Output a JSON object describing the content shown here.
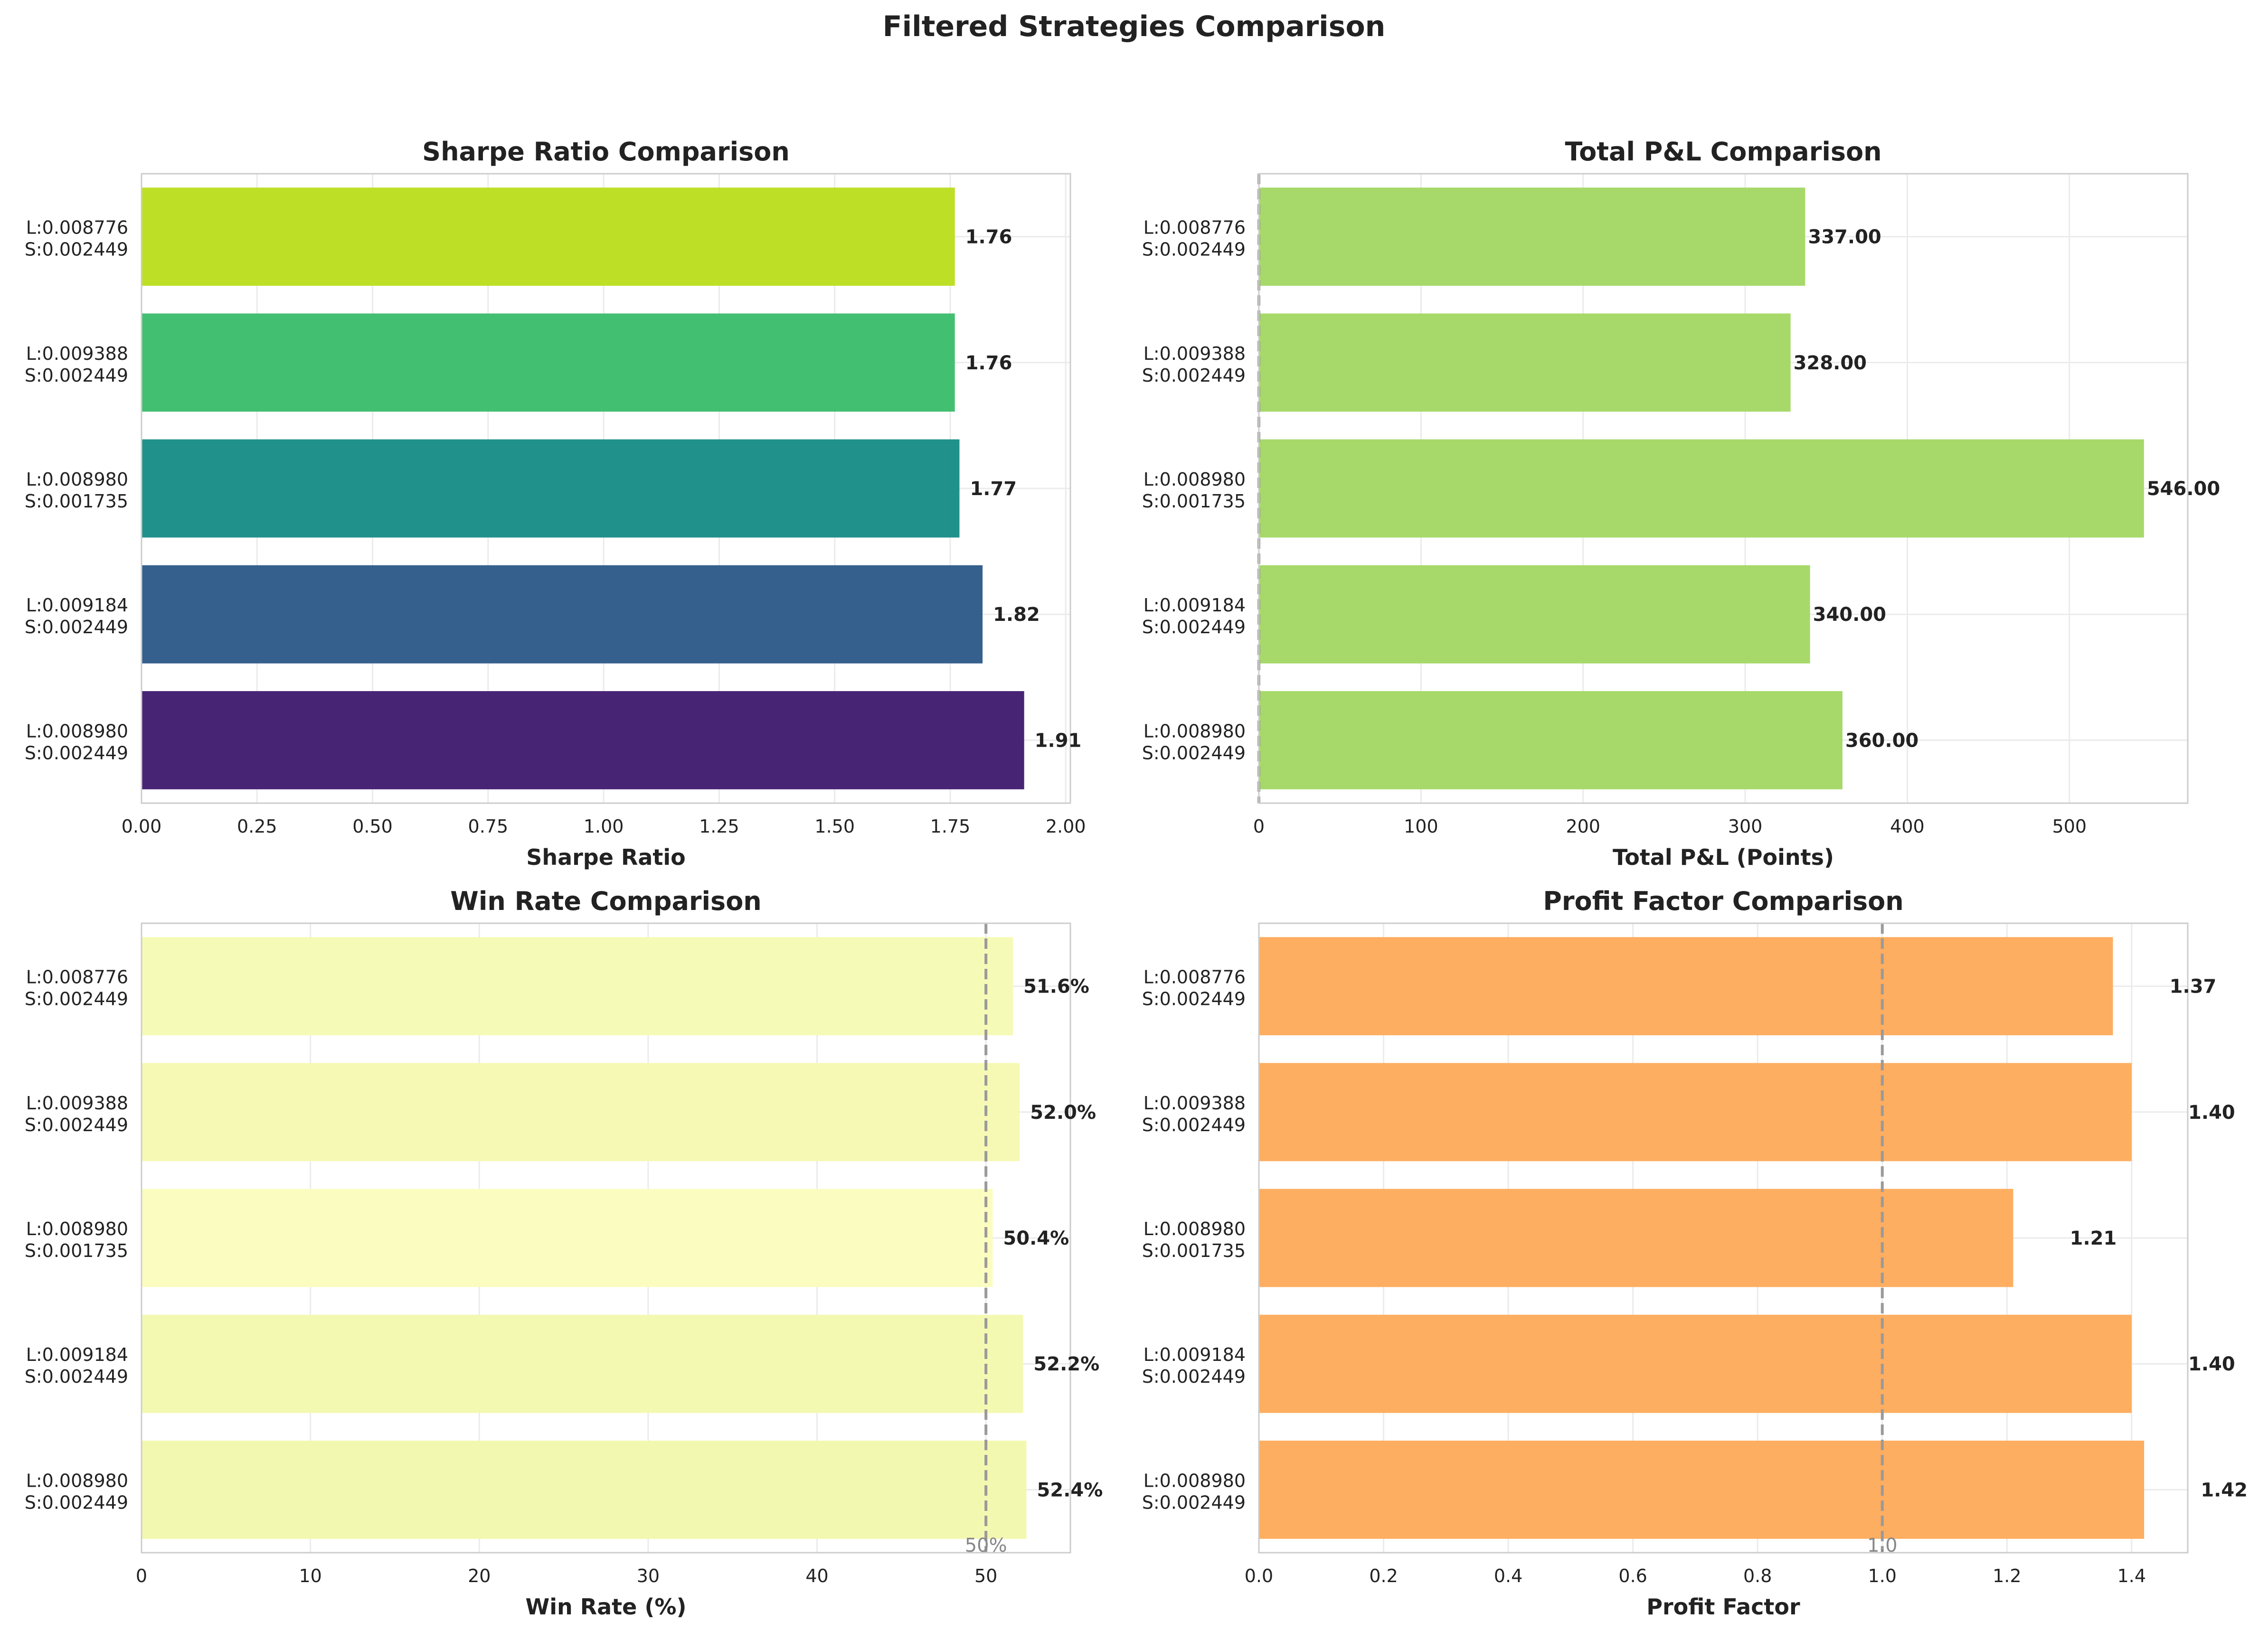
{
  "figure_title": "Filtered Strategies Comparison",
  "chart_data": [
    {
      "type": "bar",
      "orientation": "horizontal",
      "title": "Sharpe Ratio Comparison",
      "xlabel": "Sharpe Ratio",
      "ylabel": "",
      "categories": [
        [
          "L:0.008980",
          "S:0.002449"
        ],
        [
          "L:0.009184",
          "S:0.002449"
        ],
        [
          "L:0.008980",
          "S:0.001735"
        ],
        [
          "L:0.009388",
          "S:0.002449"
        ],
        [
          "L:0.008776",
          "S:0.002449"
        ]
      ],
      "values": [
        1.91,
        1.82,
        1.77,
        1.76,
        1.76
      ],
      "value_labels": [
        "1.91",
        "1.82",
        "1.77",
        "1.76",
        "1.76"
      ],
      "colors": [
        "#482475",
        "#35608d",
        "#21918c",
        "#43bf71",
        "#bddf26"
      ],
      "xlim": [
        0,
        2.01
      ],
      "xticks": [
        0,
        0.25,
        0.5,
        0.75,
        1.0,
        1.25,
        1.5,
        1.75,
        2.0
      ],
      "xtick_labels": [
        "0.00",
        "0.25",
        "0.50",
        "0.75",
        "1.00",
        "1.25",
        "1.50",
        "1.75",
        "2.00"
      ],
      "grid": true
    },
    {
      "type": "bar",
      "orientation": "horizontal",
      "title": "Total P&L Comparison",
      "xlabel": "Total P&L (Points)",
      "ylabel": "",
      "categories": [
        [
          "L:0.008980",
          "S:0.002449"
        ],
        [
          "L:0.009184",
          "S:0.002449"
        ],
        [
          "L:0.008980",
          "S:0.001735"
        ],
        [
          "L:0.009388",
          "S:0.002449"
        ],
        [
          "L:0.008776",
          "S:0.002449"
        ]
      ],
      "values": [
        360.0,
        340.0,
        546.0,
        328.0,
        337.0
      ],
      "value_labels": [
        "360.00",
        "340.00",
        "546.00",
        "328.00",
        "337.00"
      ],
      "colors": [
        "#a6d96a",
        "#a6d96a",
        "#a6d96a",
        "#a6d96a",
        "#a6d96a"
      ],
      "xlim": [
        0,
        573
      ],
      "xticks": [
        0,
        100,
        200,
        300,
        400,
        500
      ],
      "xtick_labels": [
        "0",
        "100",
        "200",
        "300",
        "400",
        "500"
      ],
      "reference_line": 0,
      "grid": true
    },
    {
      "type": "bar",
      "orientation": "horizontal",
      "title": "Win Rate Comparison",
      "xlabel": "Win Rate (%)",
      "ylabel": "",
      "categories": [
        [
          "L:0.008980",
          "S:0.002449"
        ],
        [
          "L:0.009184",
          "S:0.002449"
        ],
        [
          "L:0.008980",
          "S:0.001735"
        ],
        [
          "L:0.009388",
          "S:0.002449"
        ],
        [
          "L:0.008776",
          "S:0.002449"
        ]
      ],
      "values": [
        52.4,
        52.2,
        50.4,
        52.0,
        51.6
      ],
      "value_labels": [
        "52.4%",
        "52.2%",
        "50.4%",
        "52.0%",
        "51.6%"
      ],
      "colors": [
        "#f3f8b0",
        "#f4f9b2",
        "#fbfdc0",
        "#f5f9b4",
        "#f6fab7"
      ],
      "xlim": [
        0,
        55
      ],
      "xticks": [
        0,
        10,
        20,
        30,
        40,
        50
      ],
      "xtick_labels": [
        "0",
        "10",
        "20",
        "30",
        "40",
        "50"
      ],
      "reference_line": 50,
      "reference_label": "50%",
      "grid": true
    },
    {
      "type": "bar",
      "orientation": "horizontal",
      "title": "Profit Factor Comparison",
      "xlabel": "Profit Factor",
      "ylabel": "",
      "categories": [
        [
          "L:0.008980",
          "S:0.002449"
        ],
        [
          "L:0.009184",
          "S:0.002449"
        ],
        [
          "L:0.008980",
          "S:0.001735"
        ],
        [
          "L:0.009388",
          "S:0.002449"
        ],
        [
          "L:0.008776",
          "S:0.002449"
        ]
      ],
      "values": [
        1.42,
        1.4,
        1.21,
        1.4,
        1.37
      ],
      "value_labels": [
        "1.42",
        "1.40",
        "1.21",
        "1.40",
        "1.37"
      ],
      "colors": [
        "#fdae61",
        "#fdae61",
        "#fdae61",
        "#fdae61",
        "#fdae61"
      ],
      "xlim": [
        0,
        1.49
      ],
      "xticks": [
        0,
        0.2,
        0.4,
        0.6,
        0.8,
        1.0,
        1.2,
        1.4
      ],
      "xtick_labels": [
        "0.0",
        "0.2",
        "0.4",
        "0.6",
        "0.8",
        "1.0",
        "1.2",
        "1.4"
      ],
      "reference_line": 1.0,
      "reference_label": "1.0",
      "grid": true
    }
  ]
}
